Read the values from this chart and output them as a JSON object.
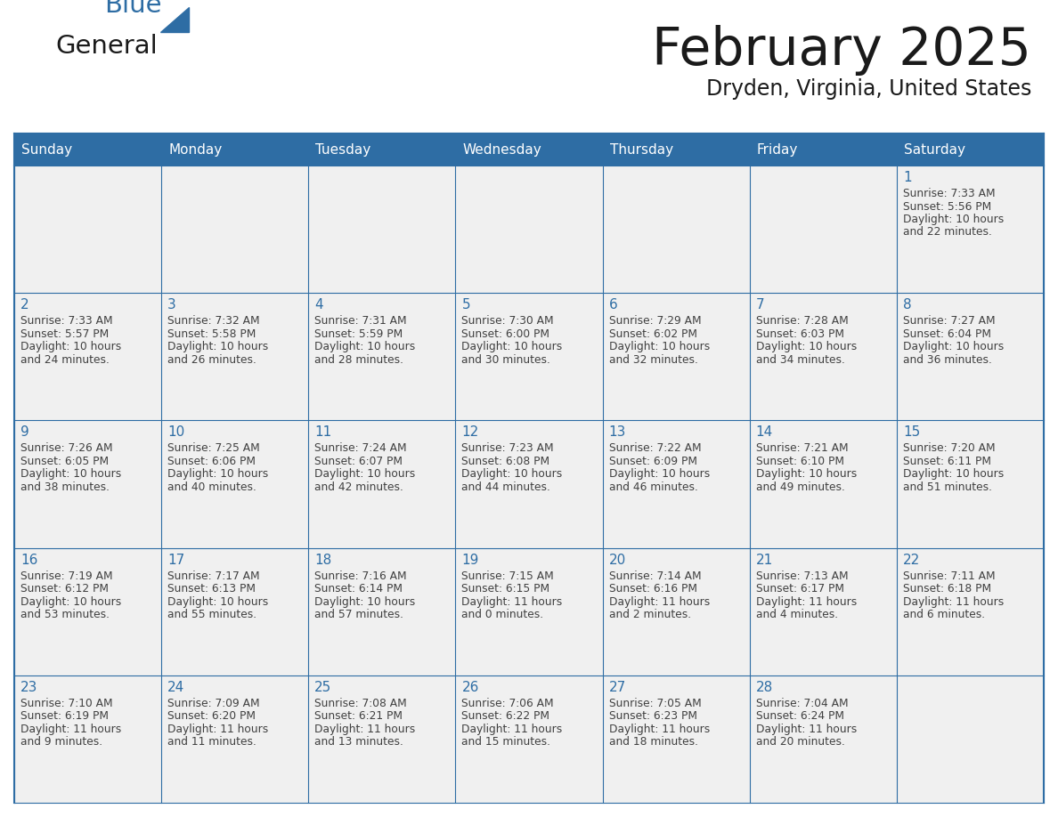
{
  "title": "February 2025",
  "subtitle": "Dryden, Virginia, United States",
  "header_bg": "#2E6DA4",
  "header_text_color": "#FFFFFF",
  "cell_bg_light": "#F0F0F0",
  "cell_bg_white": "#FFFFFF",
  "border_color": "#2E6DA4",
  "day_names": [
    "Sunday",
    "Monday",
    "Tuesday",
    "Wednesday",
    "Thursday",
    "Friday",
    "Saturday"
  ],
  "text_color": "#404040",
  "date_color": "#2E6DA4",
  "logo_general_color": "#1A1A1A",
  "logo_blue_color": "#2E6DA4",
  "days": [
    {
      "date": 1,
      "col": 6,
      "row": 0,
      "sunrise": "7:33 AM",
      "sunset": "5:56 PM",
      "daylight_h": "10 hours",
      "daylight_m": "and 22 minutes."
    },
    {
      "date": 2,
      "col": 0,
      "row": 1,
      "sunrise": "7:33 AM",
      "sunset": "5:57 PM",
      "daylight_h": "10 hours",
      "daylight_m": "and 24 minutes."
    },
    {
      "date": 3,
      "col": 1,
      "row": 1,
      "sunrise": "7:32 AM",
      "sunset": "5:58 PM",
      "daylight_h": "10 hours",
      "daylight_m": "and 26 minutes."
    },
    {
      "date": 4,
      "col": 2,
      "row": 1,
      "sunrise": "7:31 AM",
      "sunset": "5:59 PM",
      "daylight_h": "10 hours",
      "daylight_m": "and 28 minutes."
    },
    {
      "date": 5,
      "col": 3,
      "row": 1,
      "sunrise": "7:30 AM",
      "sunset": "6:00 PM",
      "daylight_h": "10 hours",
      "daylight_m": "and 30 minutes."
    },
    {
      "date": 6,
      "col": 4,
      "row": 1,
      "sunrise": "7:29 AM",
      "sunset": "6:02 PM",
      "daylight_h": "10 hours",
      "daylight_m": "and 32 minutes."
    },
    {
      "date": 7,
      "col": 5,
      "row": 1,
      "sunrise": "7:28 AM",
      "sunset": "6:03 PM",
      "daylight_h": "10 hours",
      "daylight_m": "and 34 minutes."
    },
    {
      "date": 8,
      "col": 6,
      "row": 1,
      "sunrise": "7:27 AM",
      "sunset": "6:04 PM",
      "daylight_h": "10 hours",
      "daylight_m": "and 36 minutes."
    },
    {
      "date": 9,
      "col": 0,
      "row": 2,
      "sunrise": "7:26 AM",
      "sunset": "6:05 PM",
      "daylight_h": "10 hours",
      "daylight_m": "and 38 minutes."
    },
    {
      "date": 10,
      "col": 1,
      "row": 2,
      "sunrise": "7:25 AM",
      "sunset": "6:06 PM",
      "daylight_h": "10 hours",
      "daylight_m": "and 40 minutes."
    },
    {
      "date": 11,
      "col": 2,
      "row": 2,
      "sunrise": "7:24 AM",
      "sunset": "6:07 PM",
      "daylight_h": "10 hours",
      "daylight_m": "and 42 minutes."
    },
    {
      "date": 12,
      "col": 3,
      "row": 2,
      "sunrise": "7:23 AM",
      "sunset": "6:08 PM",
      "daylight_h": "10 hours",
      "daylight_m": "and 44 minutes."
    },
    {
      "date": 13,
      "col": 4,
      "row": 2,
      "sunrise": "7:22 AM",
      "sunset": "6:09 PM",
      "daylight_h": "10 hours",
      "daylight_m": "and 46 minutes."
    },
    {
      "date": 14,
      "col": 5,
      "row": 2,
      "sunrise": "7:21 AM",
      "sunset": "6:10 PM",
      "daylight_h": "10 hours",
      "daylight_m": "and 49 minutes."
    },
    {
      "date": 15,
      "col": 6,
      "row": 2,
      "sunrise": "7:20 AM",
      "sunset": "6:11 PM",
      "daylight_h": "10 hours",
      "daylight_m": "and 51 minutes."
    },
    {
      "date": 16,
      "col": 0,
      "row": 3,
      "sunrise": "7:19 AM",
      "sunset": "6:12 PM",
      "daylight_h": "10 hours",
      "daylight_m": "and 53 minutes."
    },
    {
      "date": 17,
      "col": 1,
      "row": 3,
      "sunrise": "7:17 AM",
      "sunset": "6:13 PM",
      "daylight_h": "10 hours",
      "daylight_m": "and 55 minutes."
    },
    {
      "date": 18,
      "col": 2,
      "row": 3,
      "sunrise": "7:16 AM",
      "sunset": "6:14 PM",
      "daylight_h": "10 hours",
      "daylight_m": "and 57 minutes."
    },
    {
      "date": 19,
      "col": 3,
      "row": 3,
      "sunrise": "7:15 AM",
      "sunset": "6:15 PM",
      "daylight_h": "11 hours",
      "daylight_m": "and 0 minutes."
    },
    {
      "date": 20,
      "col": 4,
      "row": 3,
      "sunrise": "7:14 AM",
      "sunset": "6:16 PM",
      "daylight_h": "11 hours",
      "daylight_m": "and 2 minutes."
    },
    {
      "date": 21,
      "col": 5,
      "row": 3,
      "sunrise": "7:13 AM",
      "sunset": "6:17 PM",
      "daylight_h": "11 hours",
      "daylight_m": "and 4 minutes."
    },
    {
      "date": 22,
      "col": 6,
      "row": 3,
      "sunrise": "7:11 AM",
      "sunset": "6:18 PM",
      "daylight_h": "11 hours",
      "daylight_m": "and 6 minutes."
    },
    {
      "date": 23,
      "col": 0,
      "row": 4,
      "sunrise": "7:10 AM",
      "sunset": "6:19 PM",
      "daylight_h": "11 hours",
      "daylight_m": "and 9 minutes."
    },
    {
      "date": 24,
      "col": 1,
      "row": 4,
      "sunrise": "7:09 AM",
      "sunset": "6:20 PM",
      "daylight_h": "11 hours",
      "daylight_m": "and 11 minutes."
    },
    {
      "date": 25,
      "col": 2,
      "row": 4,
      "sunrise": "7:08 AM",
      "sunset": "6:21 PM",
      "daylight_h": "11 hours",
      "daylight_m": "and 13 minutes."
    },
    {
      "date": 26,
      "col": 3,
      "row": 4,
      "sunrise": "7:06 AM",
      "sunset": "6:22 PM",
      "daylight_h": "11 hours",
      "daylight_m": "and 15 minutes."
    },
    {
      "date": 27,
      "col": 4,
      "row": 4,
      "sunrise": "7:05 AM",
      "sunset": "6:23 PM",
      "daylight_h": "11 hours",
      "daylight_m": "and 18 minutes."
    },
    {
      "date": 28,
      "col": 5,
      "row": 4,
      "sunrise": "7:04 AM",
      "sunset": "6:24 PM",
      "daylight_h": "11 hours",
      "daylight_m": "and 20 minutes."
    }
  ]
}
